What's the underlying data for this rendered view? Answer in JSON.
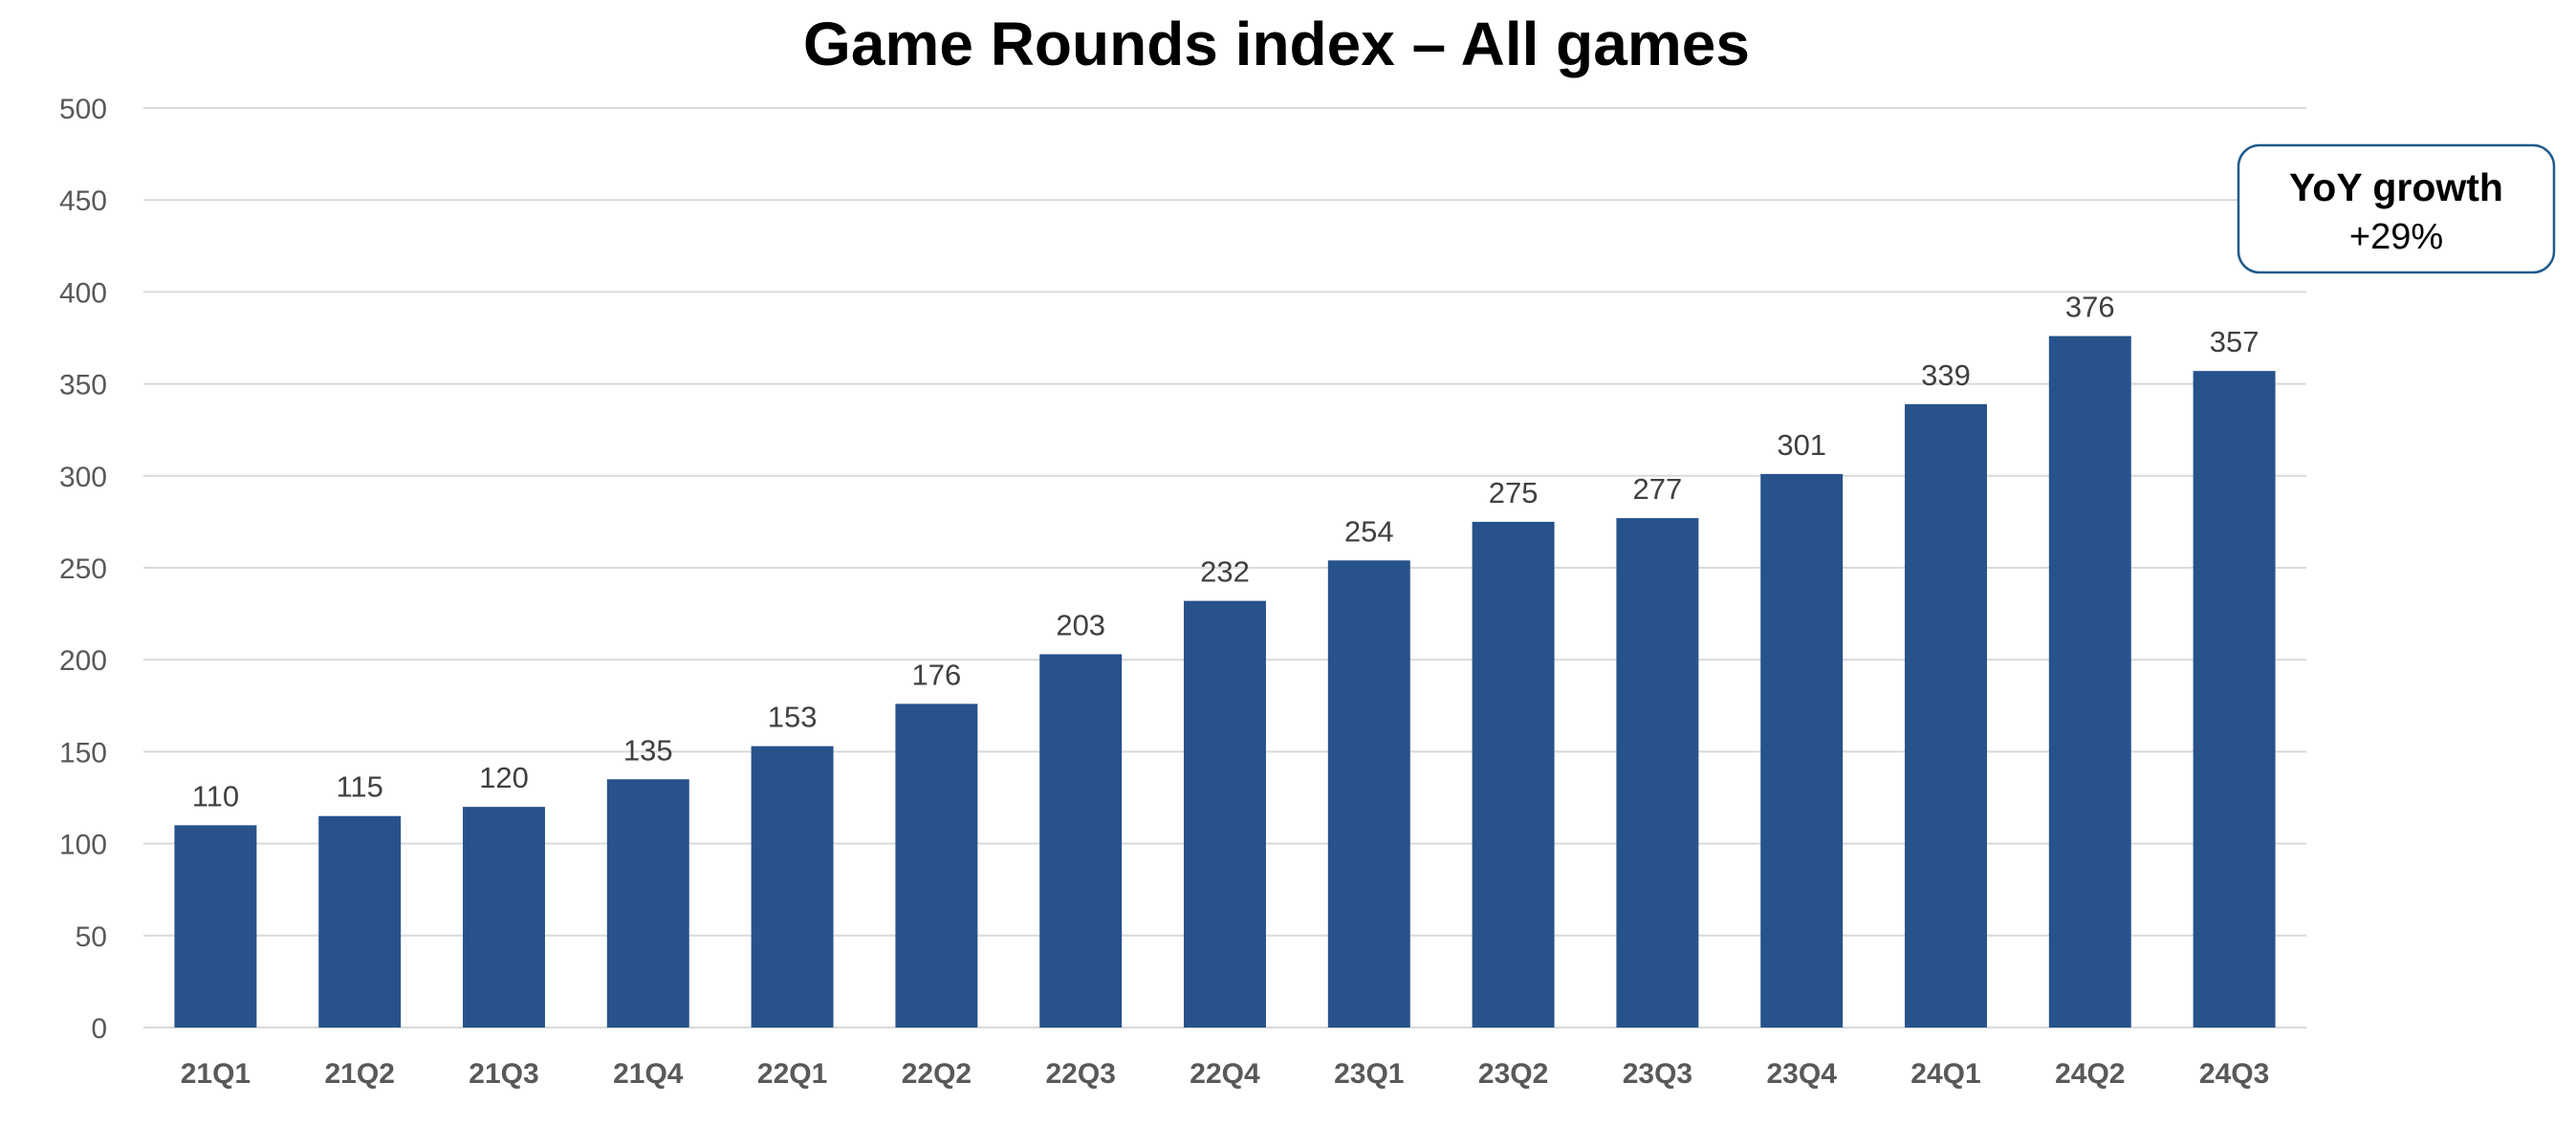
{
  "chart_data": {
    "type": "bar",
    "title": "Game Rounds index – All games",
    "categories": [
      "21Q1",
      "21Q2",
      "21Q3",
      "21Q4",
      "22Q1",
      "22Q2",
      "22Q3",
      "22Q4",
      "23Q1",
      "23Q2",
      "23Q3",
      "23Q4",
      "24Q1",
      "24Q2",
      "24Q3"
    ],
    "values": [
      110,
      115,
      120,
      135,
      153,
      176,
      203,
      232,
      254,
      275,
      277,
      301,
      339,
      376,
      357
    ],
    "ylim": [
      0,
      500
    ],
    "yticks": [
      0,
      50,
      100,
      150,
      200,
      250,
      300,
      350,
      400,
      450,
      500
    ],
    "xlabel": "",
    "ylabel": "",
    "grid": true,
    "legend": "none",
    "bar_color": "#27528b",
    "annotation": {
      "title": "YoY growth",
      "value": "+29%",
      "border_color": "#1f5b8c"
    }
  }
}
